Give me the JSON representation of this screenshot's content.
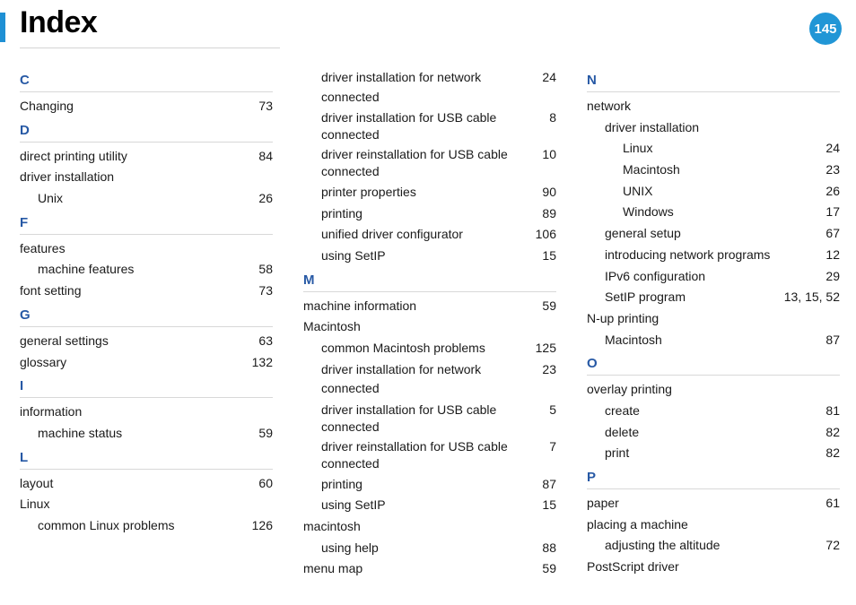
{
  "header": {
    "title": "Index",
    "page_number": "145"
  },
  "columns": [
    [
      {
        "type": "letter",
        "text": "C"
      },
      {
        "type": "row",
        "level": 0,
        "term": "Changing",
        "page": "73"
      },
      {
        "type": "letter",
        "text": "D"
      },
      {
        "type": "row",
        "level": 0,
        "term": "direct printing utility",
        "page": "84"
      },
      {
        "type": "row",
        "level": 0,
        "term": "driver installation",
        "page": ""
      },
      {
        "type": "row",
        "level": 1,
        "term": "Unix",
        "page": "26"
      },
      {
        "type": "letter",
        "text": "F"
      },
      {
        "type": "row",
        "level": 0,
        "term": "features",
        "page": ""
      },
      {
        "type": "row",
        "level": 1,
        "term": "machine features",
        "page": "58"
      },
      {
        "type": "row",
        "level": 0,
        "term": "font setting",
        "page": "73"
      },
      {
        "type": "letter",
        "text": "G"
      },
      {
        "type": "row",
        "level": 0,
        "term": "general settings",
        "page": "63"
      },
      {
        "type": "row",
        "level": 0,
        "term": "glossary",
        "page": "132"
      },
      {
        "type": "letter",
        "text": "I"
      },
      {
        "type": "row",
        "level": 0,
        "term": "information",
        "page": ""
      },
      {
        "type": "row",
        "level": 1,
        "term": "machine status",
        "page": "59"
      },
      {
        "type": "letter",
        "text": "L"
      },
      {
        "type": "row",
        "level": 0,
        "term": "layout",
        "page": "60"
      },
      {
        "type": "row",
        "level": 0,
        "term": "Linux",
        "page": ""
      },
      {
        "type": "row",
        "level": 1,
        "term": "common Linux problems",
        "page": "126"
      }
    ],
    [
      {
        "type": "row",
        "level": 1,
        "term": "driver installation for network connected",
        "page": "24"
      },
      {
        "type": "wrap",
        "level": 1,
        "term": "driver installation for USB cable connected",
        "tailpage": "8"
      },
      {
        "type": "wrap",
        "level": 1,
        "term": "driver reinstallation for USB cable connected",
        "tailpage": "10"
      },
      {
        "type": "row",
        "level": 1,
        "term": "printer properties",
        "page": "90"
      },
      {
        "type": "row",
        "level": 1,
        "term": "printing",
        "page": "89"
      },
      {
        "type": "row",
        "level": 1,
        "term": "unified driver configurator",
        "page": "106"
      },
      {
        "type": "row",
        "level": 1,
        "term": "using SetIP",
        "page": "15"
      },
      {
        "type": "letter",
        "text": "M"
      },
      {
        "type": "row",
        "level": 0,
        "term": "machine information",
        "page": "59"
      },
      {
        "type": "row",
        "level": 0,
        "term": "Macintosh",
        "page": ""
      },
      {
        "type": "row",
        "level": 1,
        "term": "common Macintosh problems",
        "page": "125"
      },
      {
        "type": "row",
        "level": 1,
        "term": "driver installation for network connected",
        "page": "23"
      },
      {
        "type": "wrap",
        "level": 1,
        "term": "driver installation for USB cable connected",
        "tailpage": "5"
      },
      {
        "type": "wrap",
        "level": 1,
        "term": "driver reinstallation for USB cable connected",
        "tailpage": "7"
      },
      {
        "type": "row",
        "level": 1,
        "term": "printing",
        "page": "87"
      },
      {
        "type": "row",
        "level": 1,
        "term": "using SetIP",
        "page": "15"
      },
      {
        "type": "row",
        "level": 0,
        "term": "macintosh",
        "page": ""
      },
      {
        "type": "row",
        "level": 1,
        "term": "using help",
        "page": "88"
      },
      {
        "type": "row",
        "level": 0,
        "term": "menu map",
        "page": "59"
      }
    ],
    [
      {
        "type": "letter",
        "text": "N"
      },
      {
        "type": "row",
        "level": 0,
        "term": "network",
        "page": ""
      },
      {
        "type": "row",
        "level": 1,
        "term": "driver installation",
        "page": ""
      },
      {
        "type": "row",
        "level": 2,
        "term": "Linux",
        "page": "24"
      },
      {
        "type": "row",
        "level": 2,
        "term": "Macintosh",
        "page": "23"
      },
      {
        "type": "row",
        "level": 2,
        "term": "UNIX",
        "page": "26"
      },
      {
        "type": "row",
        "level": 2,
        "term": "Windows",
        "page": "17"
      },
      {
        "type": "row",
        "level": 1,
        "term": "general setup",
        "page": "67"
      },
      {
        "type": "row",
        "level": 1,
        "term": "introducing network programs",
        "page": "12"
      },
      {
        "type": "row",
        "level": 1,
        "term": "IPv6 configuration",
        "page": "29"
      },
      {
        "type": "row",
        "level": 1,
        "term": "SetIP program",
        "page": "13, 15, 52"
      },
      {
        "type": "row",
        "level": 0,
        "term": "N-up printing",
        "page": ""
      },
      {
        "type": "row",
        "level": 1,
        "term": "Macintosh",
        "page": "87"
      },
      {
        "type": "letter",
        "text": "O"
      },
      {
        "type": "row",
        "level": 0,
        "term": "overlay printing",
        "page": ""
      },
      {
        "type": "row",
        "level": 1,
        "term": "create",
        "page": "81"
      },
      {
        "type": "row",
        "level": 1,
        "term": "delete",
        "page": "82"
      },
      {
        "type": "row",
        "level": 1,
        "term": "print",
        "page": "82"
      },
      {
        "type": "letter",
        "text": "P"
      },
      {
        "type": "row",
        "level": 0,
        "term": "paper",
        "page": "61"
      },
      {
        "type": "row",
        "level": 0,
        "term": "placing a machine",
        "page": ""
      },
      {
        "type": "row",
        "level": 1,
        "term": "adjusting the altitude",
        "page": "72"
      },
      {
        "type": "row",
        "level": 0,
        "term": "PostScript driver",
        "page": ""
      }
    ]
  ]
}
